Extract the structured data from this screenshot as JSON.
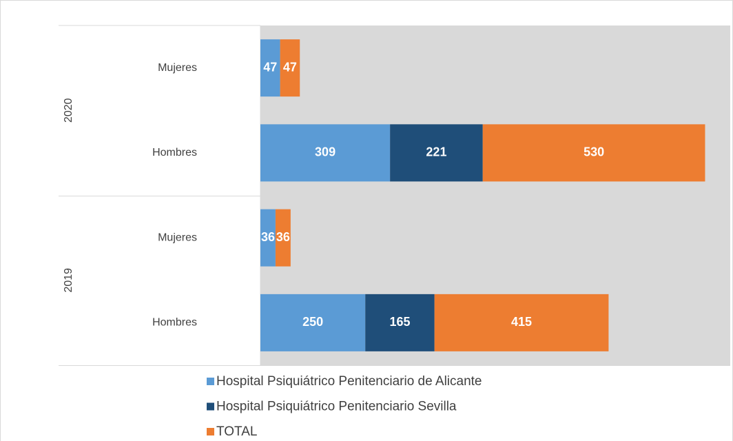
{
  "chart_data": {
    "type": "stacked-bar-horizontal",
    "groups": [
      "2020",
      "2019"
    ],
    "categories": [
      "Mujeres",
      "Hombres",
      "Mujeres",
      "Hombres"
    ],
    "series": [
      {
        "name": "Hospital Psiquiátrico Penitenciario de Alicante",
        "color": "#5b9bd5",
        "values": [
          47,
          309,
          36,
          250
        ]
      },
      {
        "name": "Hospital Psiquiátrico Penitenciario Sevilla",
        "color": "#1f4e79",
        "values": [
          null,
          221,
          null,
          165
        ]
      },
      {
        "name": "TOTAL",
        "color": "#ed7d31",
        "values": [
          47,
          530,
          36,
          415
        ]
      }
    ],
    "xlim": [
      0,
      1120
    ],
    "legend": "bottom"
  }
}
